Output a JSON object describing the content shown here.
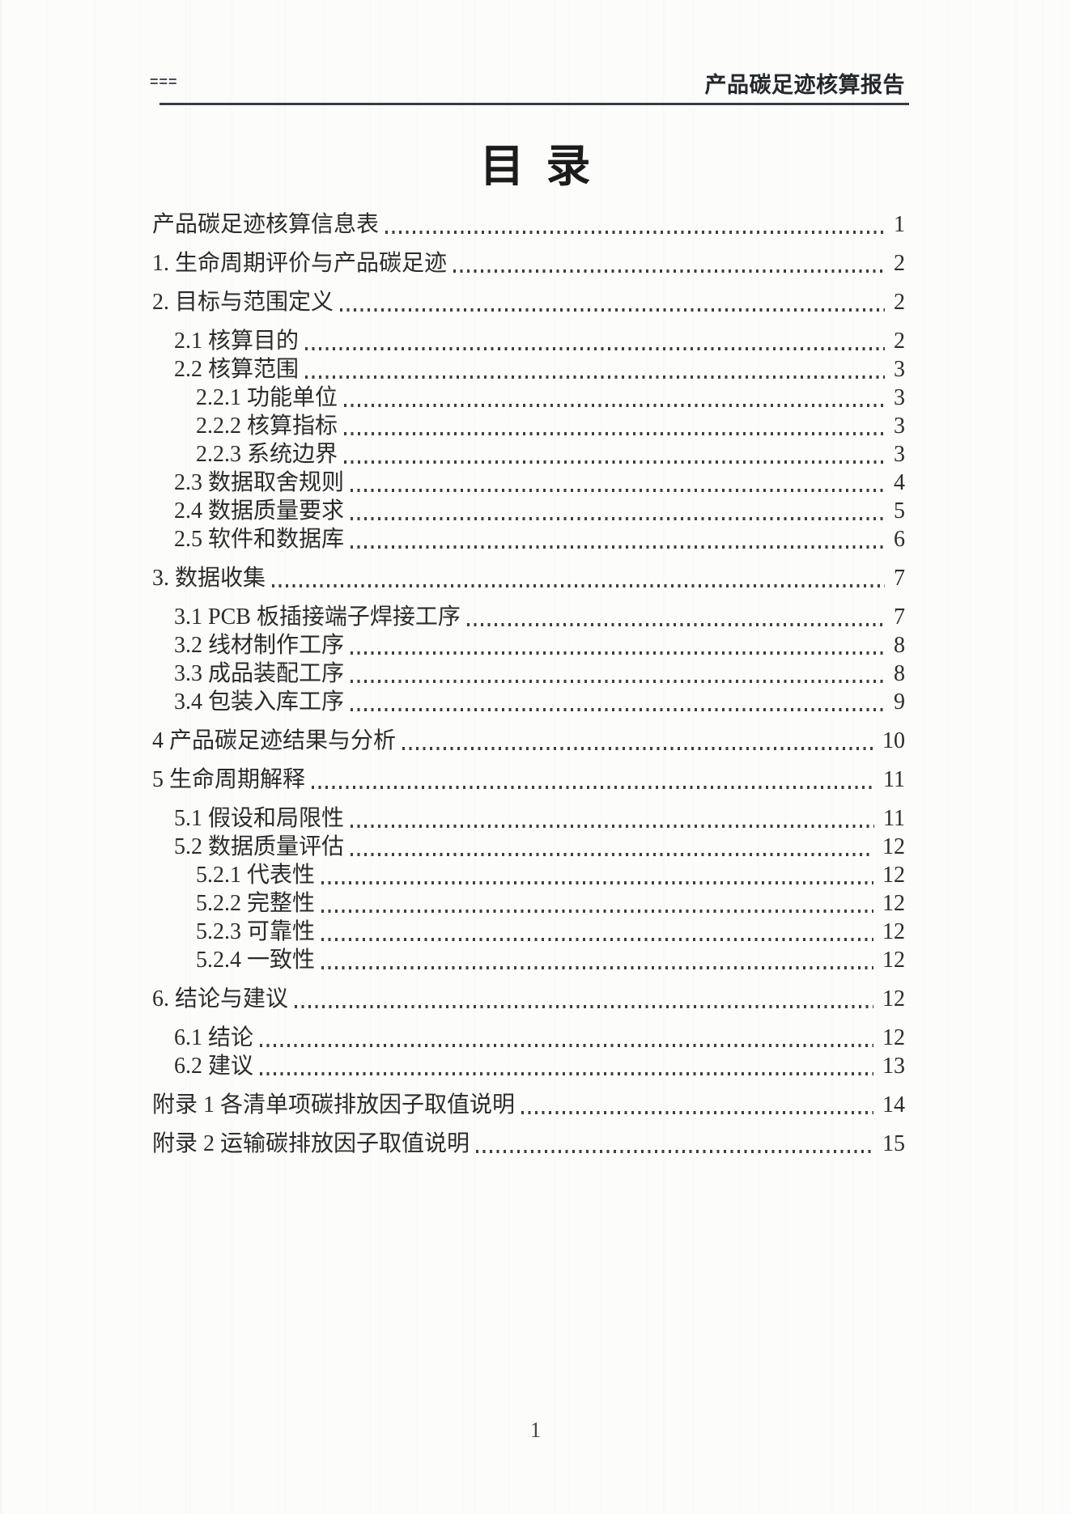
{
  "header": {
    "left_mark": "===",
    "title": "产品碳足迹核算报告"
  },
  "page_title": "目 录",
  "toc": {
    "entries": [
      {
        "label": "产品碳足迹核算信息表",
        "page": "1",
        "level": 0
      },
      {
        "label": "1. 生命周期评价与产品碳足迹",
        "page": "2",
        "level": 0
      },
      {
        "label": "2. 目标与范围定义",
        "page": "2",
        "level": 0
      },
      {
        "label": "2.1 核算目的",
        "page": "2",
        "level": 1
      },
      {
        "label": "2.2 核算范围",
        "page": "3",
        "level": 1
      },
      {
        "label": "2.2.1 功能单位",
        "page": "3",
        "level": 2
      },
      {
        "label": "2.2.2 核算指标",
        "page": "3",
        "level": 2
      },
      {
        "label": "2.2.3 系统边界",
        "page": "3",
        "level": 2
      },
      {
        "label": "2.3 数据取舍规则",
        "page": "4",
        "level": 1
      },
      {
        "label": "2.4 数据质量要求",
        "page": "5",
        "level": 1
      },
      {
        "label": "2.5 软件和数据库",
        "page": "6",
        "level": 1
      },
      {
        "label": "3. 数据收集",
        "page": "7",
        "level": 0
      },
      {
        "label": "3.1 PCB 板插接端子焊接工序",
        "page": "7",
        "level": 1
      },
      {
        "label": "3.2 线材制作工序",
        "page": "8",
        "level": 1
      },
      {
        "label": "3.3 成品装配工序",
        "page": "8",
        "level": 1
      },
      {
        "label": "3.4 包装入库工序",
        "page": "9",
        "level": 1
      },
      {
        "label": "4 产品碳足迹结果与分析",
        "page": "10",
        "level": 0
      },
      {
        "label": "5 生命周期解释",
        "page": "11",
        "level": 0
      },
      {
        "label": "5.1 假设和局限性",
        "page": "11",
        "level": 1
      },
      {
        "label": "5.2 数据质量评估",
        "page": "12",
        "level": 1
      },
      {
        "label": "5.2.1 代表性",
        "page": "12",
        "level": 2
      },
      {
        "label": "5.2.2 完整性",
        "page": "12",
        "level": 2
      },
      {
        "label": "5.2.3 可靠性",
        "page": "12",
        "level": 2
      },
      {
        "label": "5.2.4 一致性",
        "page": "12",
        "level": 2
      },
      {
        "label": "6. 结论与建议",
        "page": "12",
        "level": 0
      },
      {
        "label": "6.1 结论",
        "page": "12",
        "level": 1
      },
      {
        "label": "6.2 建议",
        "page": "13",
        "level": 1
      },
      {
        "label": "附录 1 各清单项碳排放因子取值说明",
        "page": "14",
        "level": 0
      },
      {
        "label": "附录 2 运输碳排放因子取值说明",
        "page": "15",
        "level": 0
      }
    ]
  },
  "footer": {
    "page_number": "1"
  },
  "colors": {
    "ink": "#2b2b2b",
    "rule": "#383d40"
  }
}
